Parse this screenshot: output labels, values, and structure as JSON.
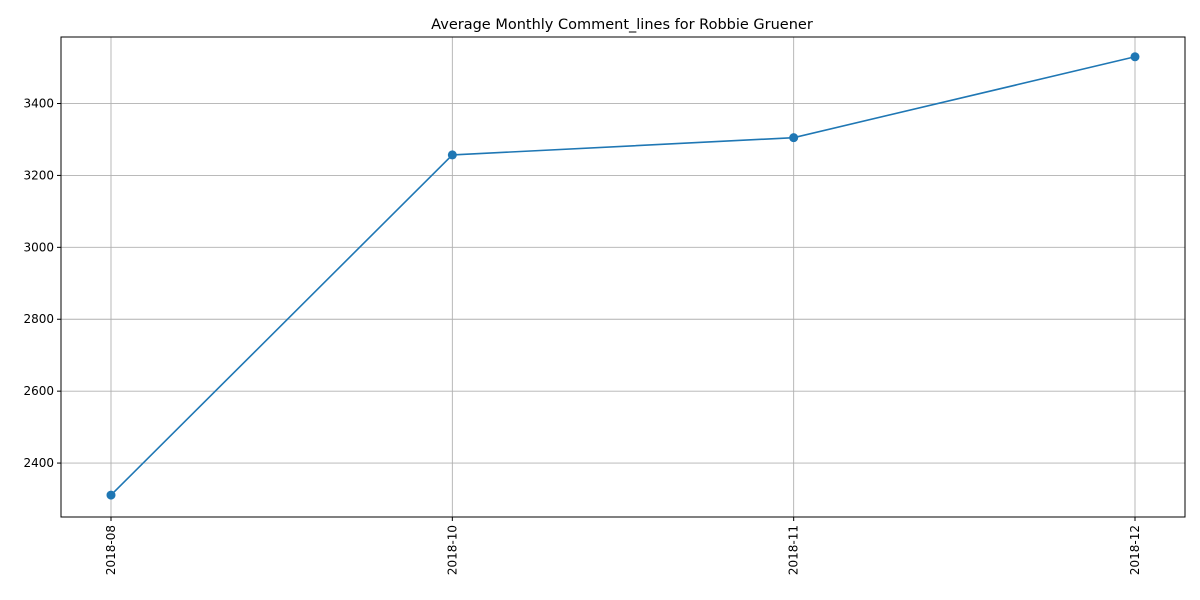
{
  "chart_data": {
    "type": "line",
    "title": "Average Monthly Comment_lines for Robbie Gruener",
    "xlabel": "",
    "ylabel": "",
    "categories": [
      "2018-08",
      "2018-10",
      "2018-11",
      "2018-12"
    ],
    "series": [
      {
        "values": [
          2311,
          3257,
          3305,
          3530
        ],
        "color": "#1f77b4",
        "marker": "circle"
      }
    ],
    "yticks": [
      2400,
      2600,
      2800,
      3000,
      3200,
      3400
    ],
    "ylim": [
      2250,
      3585
    ],
    "grid": true,
    "legend": "none"
  }
}
